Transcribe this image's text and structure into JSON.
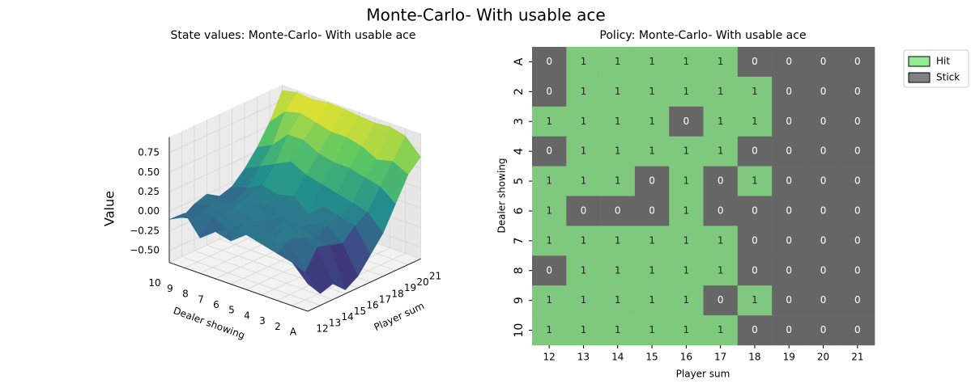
{
  "title": "Monte-Carlo- With usable ace",
  "chart_data": [
    {
      "type": "surface3d",
      "title": "State values: Monte-Carlo- With usable ace",
      "xlabel": "Player sum",
      "ylabel": "Dealer showing",
      "zlabel": "Value",
      "x": [
        12,
        13,
        14,
        15,
        16,
        17,
        18,
        19,
        20,
        21
      ],
      "xlim": [
        12,
        21
      ],
      "y": [
        "A",
        "2",
        "3",
        "4",
        "5",
        "6",
        "7",
        "8",
        "9",
        "10"
      ],
      "zlim": [
        -0.65,
        0.95
      ],
      "zticks": [
        {
          "value": -0.5,
          "label": "−0.50"
        },
        {
          "value": -0.25,
          "label": "−0.25"
        },
        {
          "value": 0,
          "label": "0.00"
        },
        {
          "value": 0.25,
          "label": "0.25"
        },
        {
          "value": 0.5,
          "label": "0.50"
        },
        {
          "value": 0.75,
          "label": "0.75"
        }
      ],
      "colormap": "viridis",
      "z": [
        [
          -0.3,
          -0.5,
          -0.45,
          -0.6,
          -0.5,
          -0.3,
          -0.1,
          0.2,
          0.5,
          0.65
        ],
        [
          -0.1,
          -0.3,
          -0.05,
          -0.1,
          -0.15,
          0.0,
          0.1,
          0.35,
          0.6,
          0.85
        ],
        [
          -0.05,
          0.05,
          0.0,
          -0.1,
          0.0,
          0.05,
          0.15,
          0.4,
          0.55,
          0.9
        ],
        [
          0.0,
          -0.05,
          0.1,
          0.0,
          -0.05,
          0.1,
          0.2,
          0.45,
          0.65,
          0.88
        ],
        [
          0.05,
          0.0,
          -0.1,
          0.05,
          0.1,
          -0.05,
          0.25,
          0.45,
          0.7,
          0.9
        ],
        [
          -0.1,
          0.05,
          0.0,
          -0.05,
          0.0,
          0.1,
          0.3,
          0.5,
          0.7,
          0.92
        ],
        [
          -0.05,
          -0.1,
          0.05,
          0.1,
          0.0,
          0.05,
          0.4,
          0.6,
          0.75,
          0.93
        ],
        [
          -0.2,
          0.0,
          -0.05,
          0.0,
          0.05,
          0.1,
          0.3,
          0.6,
          0.8,
          0.9
        ],
        [
          0.05,
          -0.1,
          0.0,
          -0.05,
          -0.1,
          0.0,
          0.2,
          0.4,
          0.75,
          0.92
        ],
        [
          -0.1,
          -0.15,
          -0.05,
          0.0,
          -0.1,
          -0.05,
          0.1,
          0.3,
          0.55,
          0.88
        ]
      ]
    },
    {
      "type": "heatmap",
      "title": "Policy: Monte-Carlo- With usable ace",
      "xlabel": "Player sum",
      "ylabel": "Dealer showing",
      "x": [
        12,
        13,
        14,
        15,
        16,
        17,
        18,
        19,
        20,
        21
      ],
      "y": [
        "A",
        "2",
        "3",
        "4",
        "5",
        "6",
        "7",
        "8",
        "9",
        "10"
      ],
      "colors": [
        "#666666",
        "#7fc97f"
      ],
      "values": [
        [
          0,
          1,
          1,
          1,
          1,
          1,
          0,
          0,
          0,
          0
        ],
        [
          0,
          1,
          1,
          1,
          1,
          1,
          1,
          0,
          0,
          0
        ],
        [
          1,
          1,
          1,
          1,
          0,
          1,
          1,
          0,
          0,
          0
        ],
        [
          0,
          1,
          1,
          1,
          1,
          1,
          0,
          0,
          0,
          0
        ],
        [
          1,
          1,
          1,
          0,
          1,
          0,
          1,
          0,
          0,
          0
        ],
        [
          1,
          0,
          0,
          0,
          1,
          0,
          0,
          0,
          0,
          0
        ],
        [
          1,
          1,
          1,
          1,
          1,
          1,
          0,
          0,
          0,
          0
        ],
        [
          0,
          1,
          1,
          1,
          1,
          1,
          0,
          0,
          0,
          0
        ],
        [
          1,
          1,
          1,
          1,
          1,
          0,
          1,
          0,
          0,
          0
        ],
        [
          1,
          1,
          1,
          1,
          1,
          1,
          0,
          0,
          0,
          0
        ]
      ],
      "legend": [
        {
          "name": "Hit",
          "color": "#90ee90"
        },
        {
          "name": "Stick",
          "color": "#808080"
        }
      ],
      "legend_position": "upper right outside"
    }
  ]
}
